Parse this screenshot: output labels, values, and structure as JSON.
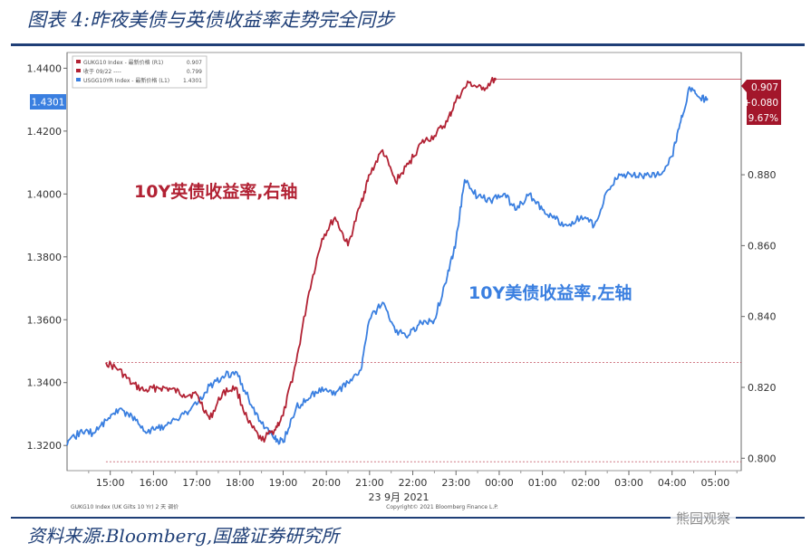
{
  "figure_title": "图表 4:昨夜美债与英债收益率走势完全同步",
  "source": "资料来源:Bloomberg,国盛证券研究所",
  "watermark": "熊园观察",
  "legend": [
    {
      "code": "GUKG10 Index - 最新价格 (R1)",
      "value": "0.907",
      "color": "#b22234"
    },
    {
      "code": "收于 09/22 ----",
      "value": "0.799",
      "color": "#b22234"
    },
    {
      "code": "USGG10YR Index - 最新价格 (L1)",
      "value": "1.4301",
      "color": "#3a7fe0"
    }
  ],
  "left_last_label": "1.4301",
  "right_labels": {
    "last": "0.907",
    "change": "+0.080",
    "pct": "9.67%"
  },
  "footer_left": "GUKG10 Index (UK Gilts 10 Yr) 2 天 调价",
  "footer_center": "Copyright© 2021 Bloomberg Finance L.P.",
  "colors": {
    "uk": "#b22234",
    "us": "#3a7fe0",
    "axis": "#888888"
  },
  "chart_data": {
    "type": "line",
    "x_ticks": [
      "15:00",
      "16:00",
      "17:00",
      "18:00",
      "19:00",
      "20:00",
      "21:00",
      "22:00",
      "23:00",
      "00:00",
      "01:00",
      "02:00",
      "03:00",
      "04:00",
      "05:00"
    ],
    "x_sublabel": "23 9月 2021",
    "x_range_hours": [
      14.0,
      29.6
    ],
    "y_left": {
      "ticks": [
        "1.3200",
        "1.3400",
        "1.3600",
        "1.3800",
        "1.4000",
        "1.4200",
        "1.4400"
      ],
      "range": [
        1.312,
        1.445
      ]
    },
    "y_right": {
      "ticks": [
        "0.800",
        "0.820",
        "0.840",
        "0.860",
        "0.880"
      ],
      "range": [
        0.7965,
        0.9145
      ]
    },
    "annotations": [
      {
        "text": "10Y英债收益率,右轴",
        "series": "uk"
      },
      {
        "text": "10Y美债收益率,左轴",
        "series": "us"
      }
    ],
    "reference_lines_right": [
      0.907,
      0.827,
      0.799
    ],
    "series": [
      {
        "id": "us",
        "axis": "left",
        "x": [
          14.0,
          14.3,
          14.6,
          14.9,
          15.2,
          15.5,
          15.8,
          16.1,
          16.4,
          16.7,
          17.0,
          17.3,
          17.6,
          17.9,
          18.2,
          18.5,
          18.8,
          19.0,
          19.3,
          19.6,
          19.9,
          20.2,
          20.5,
          20.8,
          21.0,
          21.3,
          21.6,
          21.9,
          22.2,
          22.5,
          22.8,
          23.0,
          23.2,
          23.5,
          23.8,
          24.1,
          24.4,
          24.7,
          25.0,
          25.3,
          25.6,
          25.9,
          26.2,
          26.5,
          26.8,
          27.1,
          27.4,
          27.7,
          28.0,
          28.2,
          28.4,
          28.6,
          28.8
        ],
        "y": [
          1.32,
          1.3245,
          1.324,
          1.328,
          1.3315,
          1.3295,
          1.3245,
          1.3255,
          1.327,
          1.33,
          1.333,
          1.339,
          1.342,
          1.3435,
          1.335,
          1.327,
          1.322,
          1.321,
          1.332,
          1.335,
          1.3385,
          1.336,
          1.34,
          1.344,
          1.36,
          1.3655,
          1.356,
          1.355,
          1.359,
          1.36,
          1.374,
          1.385,
          1.4045,
          1.399,
          1.398,
          1.4,
          1.395,
          1.4,
          1.395,
          1.392,
          1.39,
          1.393,
          1.39,
          1.401,
          1.406,
          1.406,
          1.406,
          1.406,
          1.412,
          1.423,
          1.434,
          1.431,
          1.4301
        ]
      },
      {
        "id": "uk",
        "axis": "right",
        "x": [
          14.9,
          15.2,
          15.5,
          15.8,
          16.1,
          16.4,
          16.7,
          17.0,
          17.3,
          17.6,
          17.9,
          18.2,
          18.5,
          18.8,
          19.0,
          19.3,
          19.6,
          19.9,
          20.2,
          20.5,
          20.8,
          21.0,
          21.3,
          21.6,
          21.9,
          22.2,
          22.5,
          22.8,
          23.0,
          23.3,
          23.6,
          23.9
        ],
        "y": [
          0.827,
          0.825,
          0.821,
          0.819,
          0.82,
          0.8195,
          0.818,
          0.818,
          0.811,
          0.8185,
          0.82,
          0.81,
          0.805,
          0.808,
          0.812,
          0.827,
          0.847,
          0.862,
          0.868,
          0.86,
          0.872,
          0.88,
          0.887,
          0.878,
          0.883,
          0.889,
          0.891,
          0.895,
          0.901,
          0.906,
          0.904,
          0.907
        ]
      }
    ]
  }
}
